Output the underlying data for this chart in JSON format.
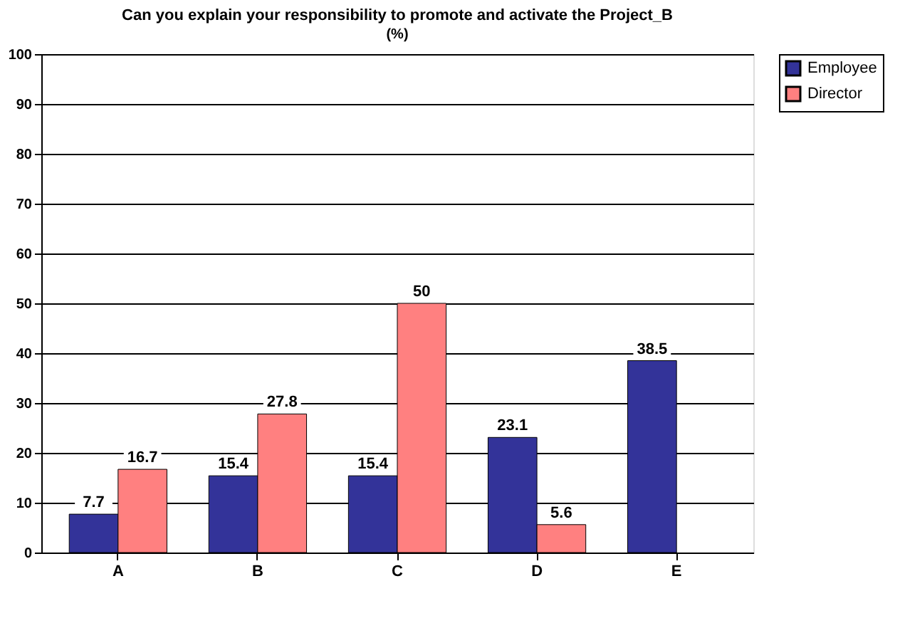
{
  "chart_data": {
    "type": "bar",
    "title": "Can you explain your responsibility to promote and activate the Project_B",
    "subtitle": "(%)",
    "categories": [
      "A",
      "B",
      "C",
      "D",
      "E"
    ],
    "series": [
      {
        "name": "Employee",
        "color": "#333399",
        "values": [
          7.7,
          15.4,
          15.4,
          23.1,
          38.5
        ]
      },
      {
        "name": "Director",
        "color": "#ff8080",
        "values": [
          16.7,
          27.8,
          50,
          5.6,
          null
        ]
      }
    ],
    "ylim": [
      0,
      100
    ],
    "yticks": [
      0,
      10,
      20,
      30,
      40,
      50,
      60,
      70,
      80,
      90,
      100
    ],
    "grid": "y",
    "legend": "right",
    "data_labels": true
  }
}
